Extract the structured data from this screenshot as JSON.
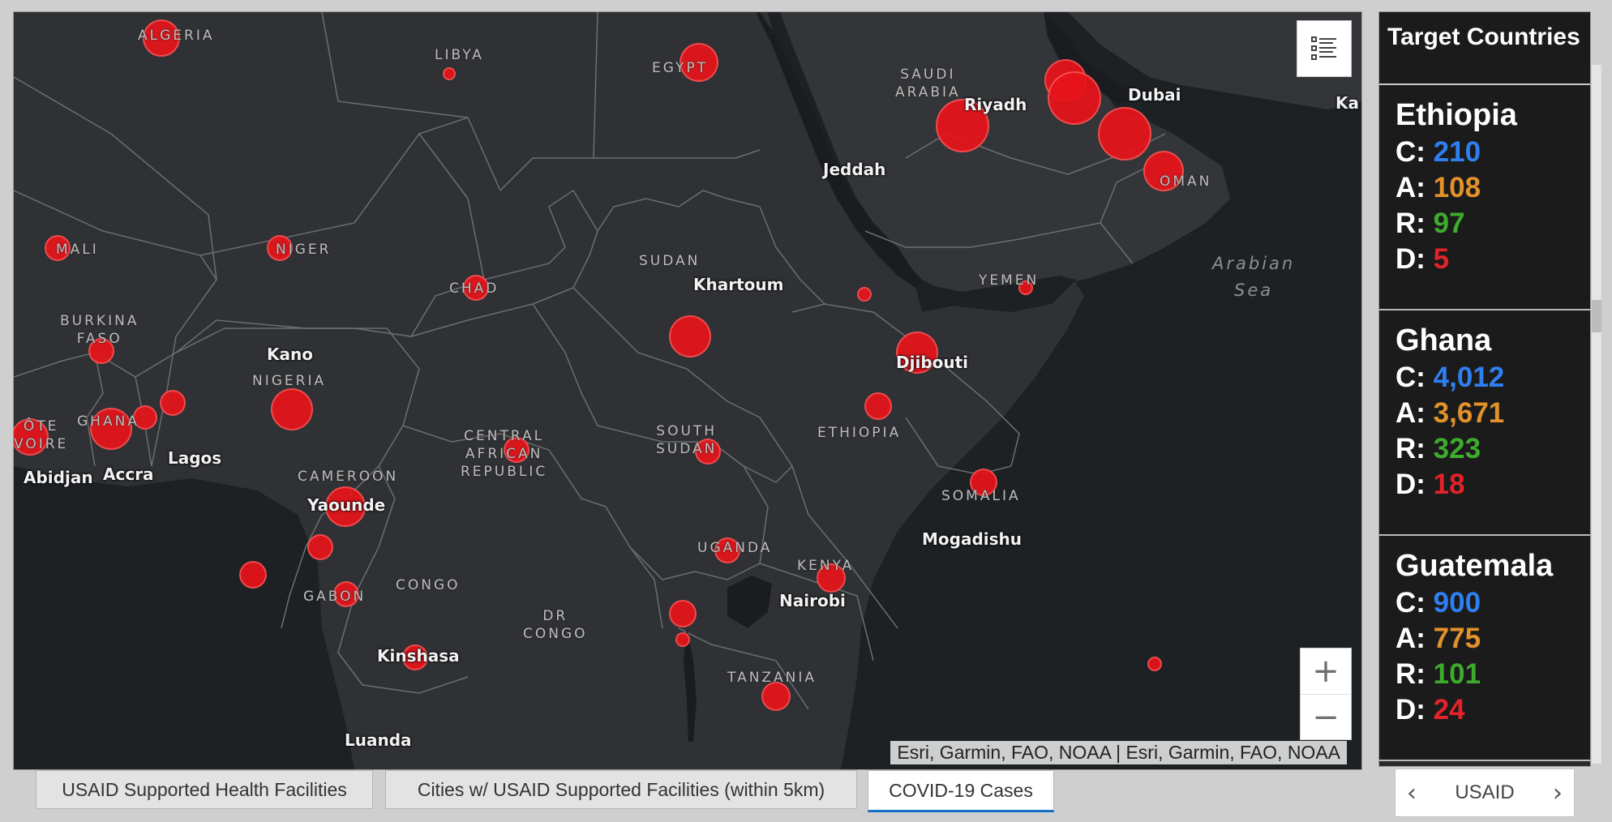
{
  "map": {
    "city_labels": [
      "Riyadh",
      "Dubai",
      "Jeddah",
      "Khartoum",
      "Kano",
      "Djibouti",
      "Abidjan",
      "Accra",
      "Lagos",
      "Yaounde",
      "Mogadishu",
      "Nairobi",
      "Kinshasa",
      "Luanda",
      "Ka"
    ],
    "country_labels": [
      "ALGERIA",
      "LIBYA",
      "EGYPT",
      "SAUDI\nARABIA",
      "OMAN",
      "MALI",
      "NIGER",
      "CHAD",
      "SUDAN",
      "YEMEN",
      "BURKINA\nFASO",
      "NIGERIA",
      "ÔTE\nVOIRE",
      "GHANA",
      "CENTRAL\nAFRICAN\nREPUBLIC",
      "SOUTH\nSUDAN",
      "ETHIOPIA",
      "CAMEROON",
      "SOMALIA",
      "UGANDA",
      "KENYA",
      "GABON",
      "CONGO",
      "DR\nCONGO",
      "TANZANIA"
    ],
    "sea_labels": [
      "Arabian\nSea"
    ],
    "attribution": "Esri, Garmin, FAO, NOAA | Esri, Garmin, FAO, NOAA",
    "zoom_in": "+",
    "zoom_out": "−",
    "legend_icon": "legend-list-icon",
    "case_marker_color": "#e8141a"
  },
  "tabs": [
    {
      "label": "USAID Supported Health Facilities"
    },
    {
      "label": "Cities w/ USAID Supported Facilities (within 5km)"
    },
    {
      "label": "COVID-19 Cases"
    }
  ],
  "panel": {
    "title": "Target Countries",
    "countries": [
      {
        "name": "Ethiopia",
        "c": "210",
        "a": "108",
        "r": "97",
        "d": "5"
      },
      {
        "name": "Ghana",
        "c": "4,012",
        "a": "3,671",
        "r": "323",
        "d": "18"
      },
      {
        "name": "Guatemala",
        "c": "900",
        "a": "775",
        "r": "101",
        "d": "24"
      }
    ],
    "stat_labels": {
      "c": "C:",
      "a": "A:",
      "r": "R:",
      "d": "D:"
    }
  },
  "pager": {
    "label": "USAID",
    "prev_icon": "chevron-left-icon",
    "next_icon": "chevron-right-icon"
  }
}
